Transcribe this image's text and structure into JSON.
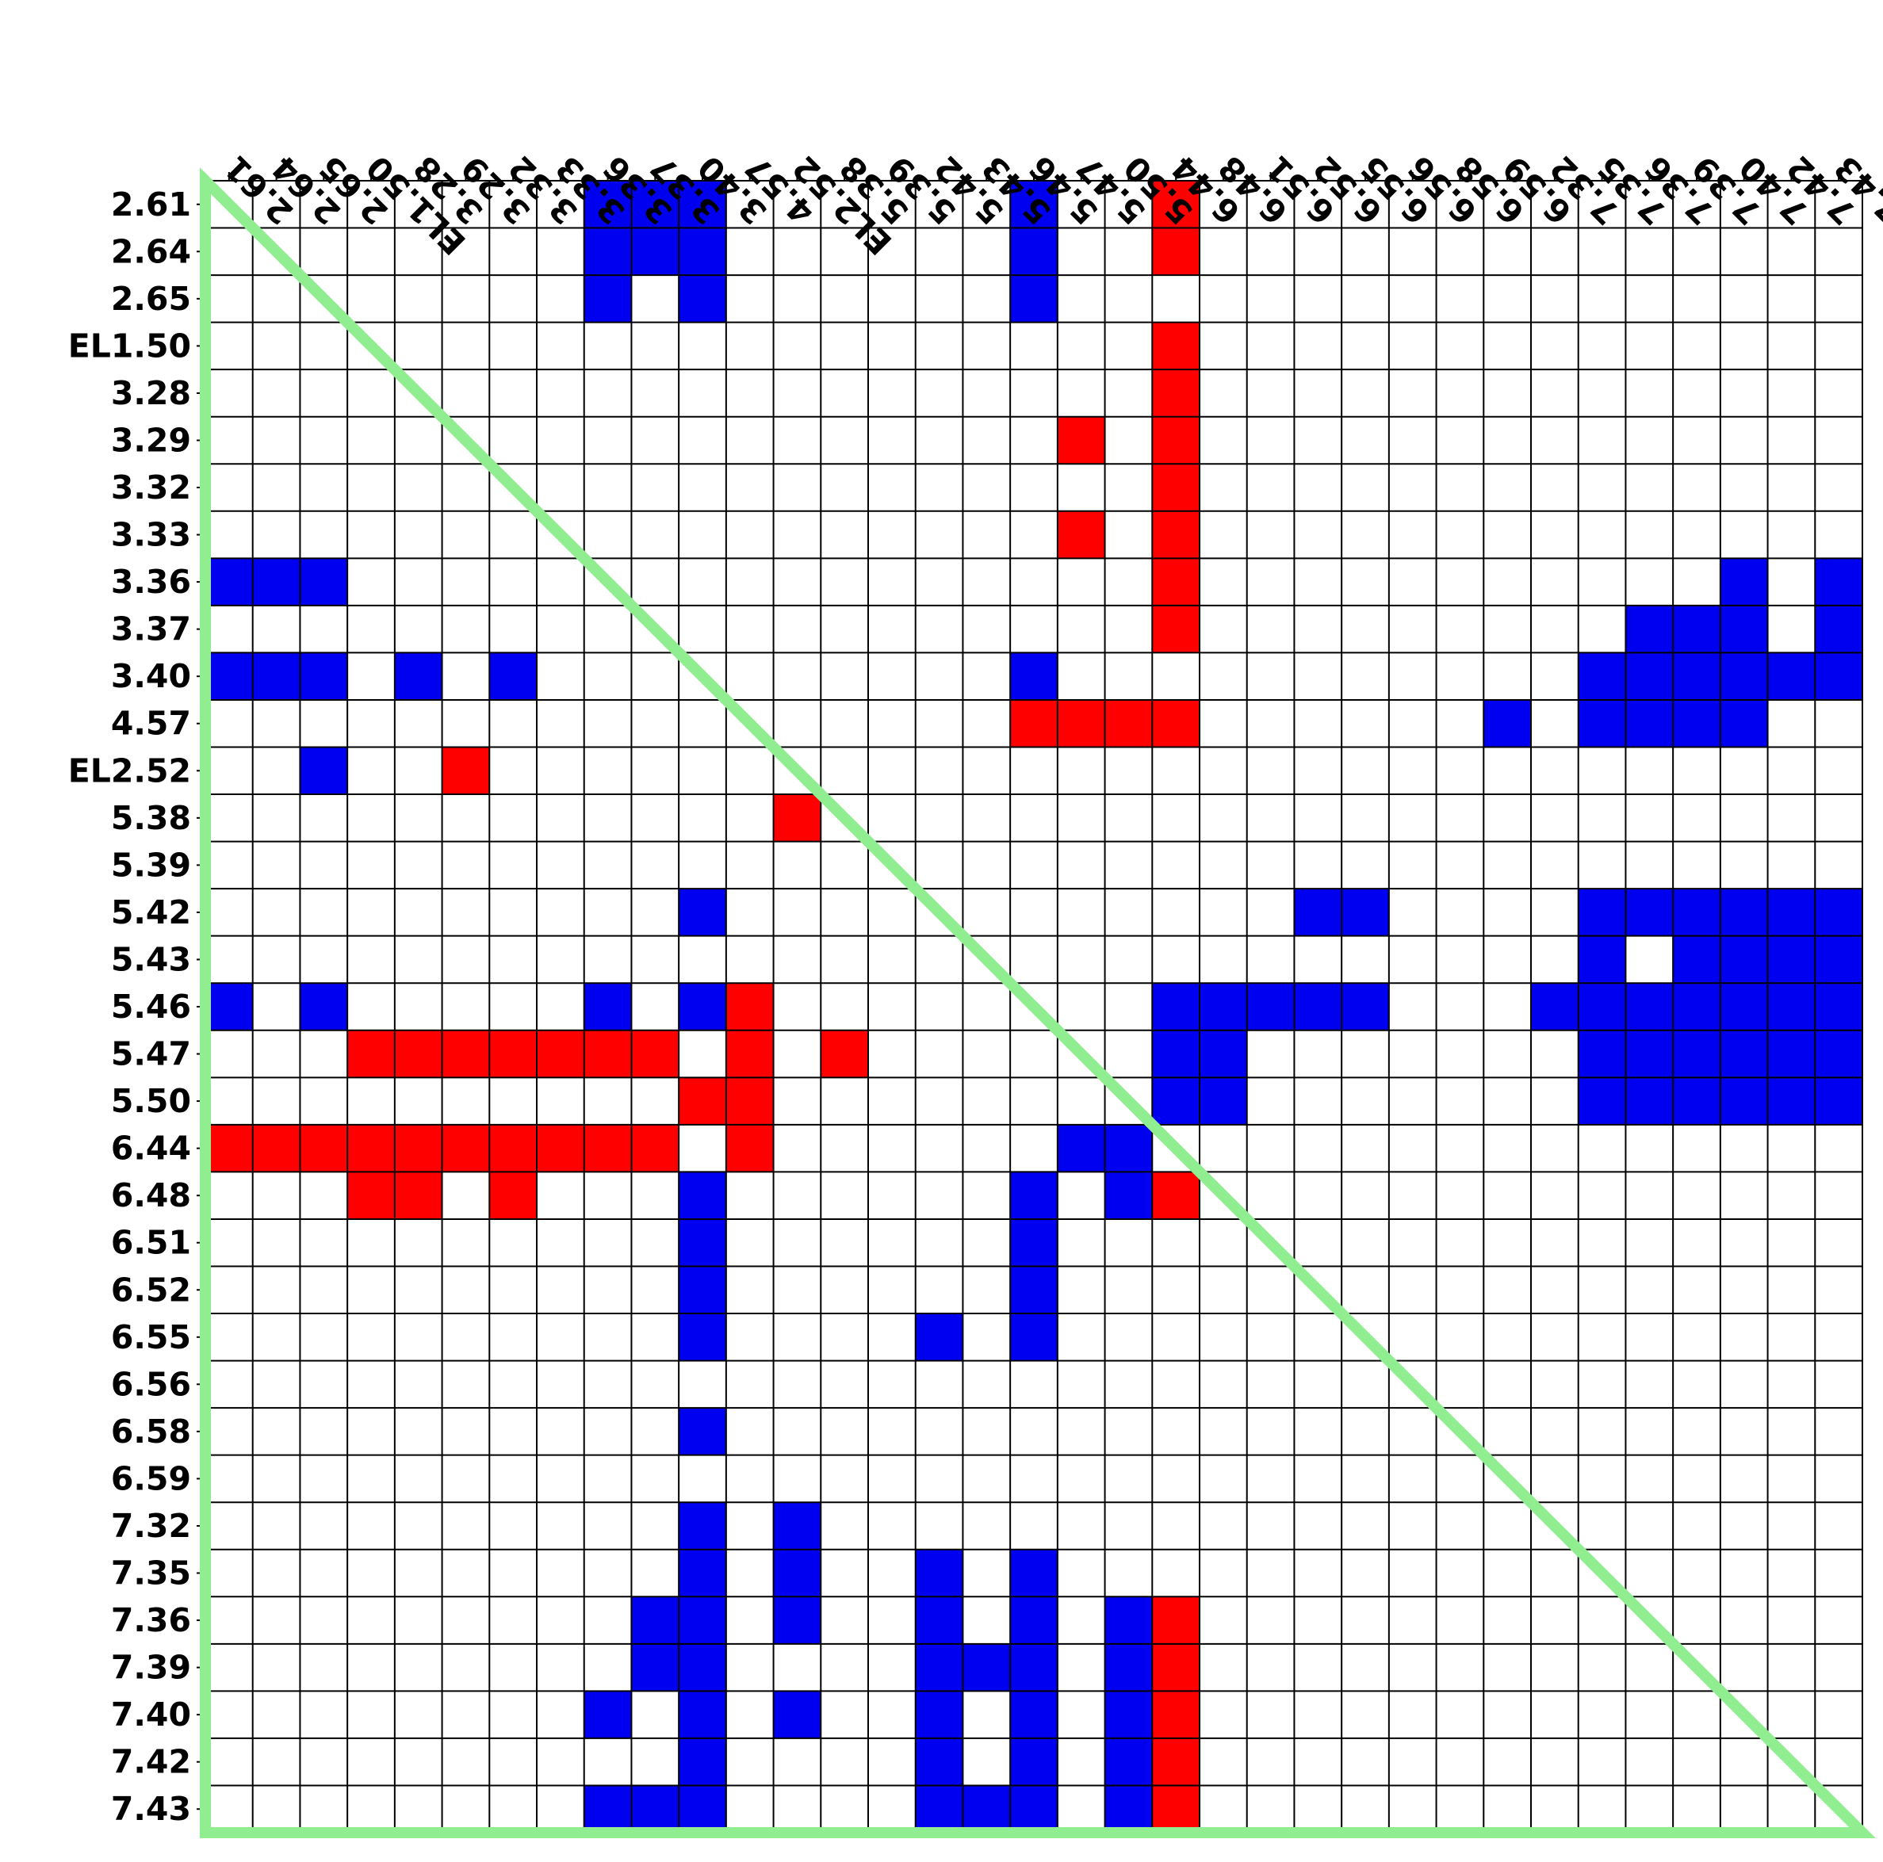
{
  "chart_data": {
    "type": "heatmap",
    "title": "",
    "xlabel": "",
    "ylabel": "",
    "labels": [
      "2.61",
      "2.64",
      "2.65",
      "EL1.50",
      "3.28",
      "3.29",
      "3.32",
      "3.33",
      "3.36",
      "3.37",
      "3.40",
      "4.57",
      "EL2.52",
      "5.38",
      "5.39",
      "5.42",
      "5.43",
      "5.46",
      "5.47",
      "5.50",
      "6.44",
      "6.48",
      "6.51",
      "6.52",
      "6.55",
      "6.56",
      "6.58",
      "6.59",
      "7.32",
      "7.35",
      "7.36",
      "7.39",
      "7.40",
      "7.42",
      "7.43"
    ],
    "x_tick_labels": [
      "2.61",
      "2.64",
      "2.65",
      "EL1.50",
      "3.28",
      "3.29",
      "3.32",
      "3.33",
      "3.36",
      "3.37",
      "3.40",
      "4.57",
      "EL2.52",
      "5.38",
      "5.39",
      "5.42",
      "5.43",
      "5.46",
      "5.47",
      "5.50",
      "6.44",
      "6.48",
      "6.51",
      "6.52",
      "6.55",
      "6.56",
      "6.58",
      "6.59",
      "7.32",
      "7.35",
      "7.36",
      "7.39",
      "7.40",
      "7.42",
      "7.43"
    ],
    "y_tick_labels": [
      "2.61",
      "2.64",
      "2.65",
      "EL1.50",
      "3.28",
      "3.29",
      "3.32",
      "3.33",
      "3.36",
      "3.37",
      "3.40",
      "4.57",
      "EL2.52",
      "5.38",
      "5.39",
      "5.42",
      "5.43",
      "5.46",
      "5.47",
      "5.50",
      "6.44",
      "6.48",
      "6.51",
      "6.52",
      "6.55",
      "6.56",
      "6.58",
      "6.59",
      "7.32",
      "7.35",
      "7.36",
      "7.39",
      "7.40",
      "7.42",
      "7.43"
    ],
    "grid": true,
    "colors": {
      "positive": "#0000f0",
      "negative": "#ff0000",
      "empty": "#ffffff",
      "grid_line": "#000000",
      "triangle_outline": "#90ee90"
    },
    "value_legend": {
      "1": "blue",
      "-1": "red",
      "0": "white"
    },
    "matrix": [
      [
        0,
        0,
        0,
        0,
        0,
        0,
        0,
        0,
        1,
        1,
        1,
        0,
        0,
        0,
        0,
        0,
        0,
        1,
        0,
        0,
        -1,
        0,
        0,
        0,
        0,
        0,
        0,
        0,
        0,
        0,
        0,
        0,
        0,
        0,
        0
      ],
      [
        0,
        0,
        0,
        0,
        0,
        0,
        0,
        0,
        1,
        1,
        1,
        0,
        0,
        0,
        0,
        0,
        0,
        1,
        0,
        0,
        -1,
        0,
        0,
        0,
        0,
        0,
        0,
        0,
        0,
        0,
        0,
        0,
        0,
        0,
        0
      ],
      [
        0,
        0,
        0,
        0,
        0,
        0,
        0,
        0,
        1,
        0,
        1,
        0,
        0,
        0,
        0,
        0,
        0,
        1,
        0,
        0,
        0,
        0,
        0,
        0,
        0,
        0,
        0,
        0,
        0,
        0,
        0,
        0,
        0,
        0,
        0
      ],
      [
        0,
        0,
        0,
        0,
        0,
        0,
        0,
        0,
        0,
        0,
        0,
        0,
        0,
        0,
        0,
        0,
        0,
        0,
        0,
        0,
        -1,
        0,
        0,
        0,
        0,
        0,
        0,
        0,
        0,
        0,
        0,
        0,
        0,
        0,
        0
      ],
      [
        0,
        0,
        0,
        0,
        0,
        0,
        0,
        0,
        0,
        0,
        0,
        0,
        0,
        0,
        0,
        0,
        0,
        0,
        0,
        0,
        -1,
        0,
        0,
        0,
        0,
        0,
        0,
        0,
        0,
        0,
        0,
        0,
        0,
        0,
        0
      ],
      [
        0,
        0,
        0,
        0,
        0,
        0,
        0,
        0,
        0,
        0,
        0,
        0,
        0,
        0,
        0,
        0,
        0,
        0,
        -1,
        0,
        -1,
        0,
        0,
        0,
        0,
        0,
        0,
        0,
        0,
        0,
        0,
        0,
        0,
        0,
        0
      ],
      [
        0,
        0,
        0,
        0,
        0,
        0,
        0,
        0,
        0,
        0,
        0,
        0,
        0,
        0,
        0,
        0,
        0,
        0,
        0,
        0,
        -1,
        0,
        0,
        0,
        0,
        0,
        0,
        0,
        0,
        0,
        0,
        0,
        0,
        0,
        0
      ],
      [
        0,
        0,
        0,
        0,
        0,
        0,
        0,
        0,
        0,
        0,
        0,
        0,
        0,
        0,
        0,
        0,
        0,
        0,
        -1,
        0,
        -1,
        0,
        0,
        0,
        0,
        0,
        0,
        0,
        0,
        0,
        0,
        0,
        0,
        0,
        0
      ],
      [
        1,
        1,
        1,
        0,
        0,
        0,
        0,
        0,
        0,
        0,
        0,
        0,
        0,
        0,
        0,
        0,
        0,
        0,
        0,
        0,
        -1,
        0,
        0,
        0,
        0,
        0,
        0,
        0,
        0,
        0,
        0,
        0,
        1,
        0,
        1
      ],
      [
        0,
        0,
        0,
        0,
        0,
        0,
        0,
        0,
        0,
        0,
        0,
        0,
        0,
        0,
        0,
        0,
        0,
        0,
        0,
        0,
        -1,
        0,
        0,
        0,
        0,
        0,
        0,
        0,
        0,
        0,
        1,
        1,
        1,
        0,
        1
      ],
      [
        1,
        1,
        1,
        0,
        1,
        0,
        1,
        0,
        0,
        0,
        0,
        0,
        0,
        0,
        0,
        0,
        0,
        1,
        0,
        0,
        0,
        0,
        0,
        0,
        0,
        0,
        0,
        0,
        0,
        1,
        1,
        1,
        1,
        1,
        1
      ],
      [
        0,
        0,
        0,
        0,
        0,
        0,
        0,
        0,
        0,
        0,
        0,
        0,
        0,
        0,
        0,
        0,
        0,
        -1,
        -1,
        -1,
        -1,
        0,
        0,
        0,
        0,
        0,
        0,
        1,
        0,
        1,
        1,
        1,
        1,
        0,
        0
      ],
      [
        0,
        0,
        1,
        0,
        0,
        -1,
        0,
        0,
        0,
        0,
        0,
        0,
        0,
        0,
        0,
        0,
        0,
        0,
        0,
        0,
        0,
        0,
        0,
        0,
        0,
        0,
        0,
        0,
        0,
        0,
        0,
        0,
        0,
        0,
        0
      ],
      [
        0,
        0,
        0,
        0,
        0,
        0,
        0,
        0,
        0,
        0,
        0,
        0,
        -1,
        0,
        0,
        0,
        0,
        0,
        0,
        0,
        0,
        0,
        0,
        0,
        0,
        0,
        0,
        0,
        0,
        0,
        0,
        0,
        0,
        0,
        0
      ],
      [
        0,
        0,
        0,
        0,
        0,
        0,
        0,
        0,
        0,
        0,
        0,
        0,
        0,
        0,
        0,
        0,
        0,
        0,
        0,
        0,
        0,
        0,
        0,
        0,
        0,
        0,
        0,
        0,
        0,
        0,
        0,
        0,
        0,
        0,
        0
      ],
      [
        0,
        0,
        0,
        0,
        0,
        0,
        0,
        0,
        0,
        0,
        1,
        0,
        0,
        0,
        0,
        0,
        0,
        0,
        0,
        0,
        0,
        0,
        0,
        1,
        1,
        0,
        0,
        0,
        0,
        1,
        1,
        1,
        1,
        1,
        1
      ],
      [
        0,
        0,
        0,
        0,
        0,
        0,
        0,
        0,
        0,
        0,
        0,
        0,
        0,
        0,
        0,
        0,
        0,
        0,
        0,
        0,
        0,
        0,
        0,
        0,
        0,
        0,
        0,
        0,
        0,
        1,
        0,
        1,
        1,
        1,
        1
      ],
      [
        1,
        0,
        1,
        0,
        0,
        0,
        0,
        0,
        1,
        0,
        1,
        -1,
        0,
        0,
        0,
        0,
        0,
        0,
        0,
        0,
        1,
        1,
        1,
        1,
        1,
        0,
        0,
        0,
        1,
        1,
        1,
        1,
        1,
        1,
        1
      ],
      [
        0,
        0,
        0,
        -1,
        -1,
        -1,
        -1,
        -1,
        -1,
        -1,
        0,
        -1,
        0,
        -1,
        0,
        0,
        0,
        0,
        0,
        0,
        1,
        1,
        0,
        0,
        0,
        0,
        0,
        0,
        0,
        1,
        1,
        1,
        1,
        1,
        1
      ],
      [
        0,
        0,
        0,
        0,
        0,
        0,
        0,
        0,
        0,
        0,
        -1,
        -1,
        0,
        0,
        0,
        0,
        0,
        0,
        0,
        0,
        1,
        1,
        0,
        0,
        0,
        0,
        0,
        0,
        0,
        1,
        1,
        1,
        1,
        1,
        1
      ],
      [
        -1,
        -1,
        -1,
        -1,
        -1,
        -1,
        -1,
        -1,
        -1,
        -1,
        0,
        -1,
        0,
        0,
        0,
        0,
        0,
        0,
        1,
        1,
        0,
        0,
        0,
        0,
        0,
        0,
        0,
        0,
        0,
        0,
        0,
        0,
        0,
        0,
        0
      ],
      [
        0,
        0,
        0,
        -1,
        -1,
        0,
        -1,
        0,
        0,
        0,
        1,
        0,
        0,
        0,
        0,
        0,
        0,
        1,
        0,
        1,
        -1,
        0,
        0,
        0,
        0,
        0,
        0,
        0,
        0,
        0,
        0,
        0,
        0,
        0,
        0
      ],
      [
        0,
        0,
        0,
        0,
        0,
        0,
        0,
        0,
        0,
        0,
        1,
        0,
        0,
        0,
        0,
        0,
        0,
        1,
        0,
        0,
        0,
        0,
        0,
        0,
        0,
        0,
        0,
        0,
        0,
        0,
        0,
        0,
        0,
        0,
        0
      ],
      [
        0,
        0,
        0,
        0,
        0,
        0,
        0,
        0,
        0,
        0,
        1,
        0,
        0,
        0,
        0,
        0,
        0,
        1,
        0,
        0,
        0,
        0,
        0,
        0,
        0,
        0,
        0,
        0,
        0,
        0,
        0,
        0,
        0,
        0,
        0
      ],
      [
        0,
        0,
        0,
        0,
        0,
        0,
        0,
        0,
        0,
        0,
        1,
        0,
        0,
        0,
        0,
        1,
        0,
        1,
        0,
        0,
        0,
        0,
        0,
        0,
        0,
        0,
        0,
        0,
        0,
        0,
        0,
        0,
        0,
        0,
        0
      ],
      [
        0,
        0,
        0,
        0,
        0,
        0,
        0,
        0,
        0,
        0,
        0,
        0,
        0,
        0,
        0,
        0,
        0,
        0,
        0,
        0,
        0,
        0,
        0,
        0,
        0,
        0,
        0,
        0,
        0,
        0,
        0,
        0,
        0,
        0,
        0
      ],
      [
        0,
        0,
        0,
        0,
        0,
        0,
        0,
        0,
        0,
        0,
        1,
        0,
        0,
        0,
        0,
        0,
        0,
        0,
        0,
        0,
        0,
        0,
        0,
        0,
        0,
        0,
        0,
        0,
        0,
        0,
        0,
        0,
        0,
        0,
        0
      ],
      [
        0,
        0,
        0,
        0,
        0,
        0,
        0,
        0,
        0,
        0,
        0,
        0,
        0,
        0,
        0,
        0,
        0,
        0,
        0,
        0,
        0,
        0,
        0,
        0,
        0,
        0,
        0,
        0,
        0,
        0,
        0,
        0,
        0,
        0,
        0
      ],
      [
        0,
        0,
        0,
        0,
        0,
        0,
        0,
        0,
        0,
        0,
        1,
        0,
        1,
        0,
        0,
        0,
        0,
        0,
        0,
        0,
        0,
        0,
        0,
        0,
        0,
        0,
        0,
        0,
        0,
        0,
        0,
        0,
        0,
        0,
        0
      ],
      [
        0,
        0,
        0,
        0,
        0,
        0,
        0,
        0,
        0,
        0,
        1,
        0,
        1,
        0,
        0,
        1,
        0,
        1,
        0,
        0,
        0,
        0,
        0,
        0,
        0,
        0,
        0,
        0,
        0,
        0,
        0,
        0,
        0,
        0,
        0
      ],
      [
        0,
        0,
        0,
        0,
        0,
        0,
        0,
        0,
        0,
        1,
        1,
        0,
        1,
        0,
        0,
        1,
        0,
        1,
        0,
        1,
        -1,
        0,
        0,
        0,
        0,
        0,
        0,
        0,
        0,
        0,
        0,
        0,
        0,
        0,
        0
      ],
      [
        0,
        0,
        0,
        0,
        0,
        0,
        0,
        0,
        0,
        1,
        1,
        0,
        0,
        0,
        0,
        1,
        1,
        1,
        0,
        1,
        -1,
        0,
        0,
        0,
        0,
        0,
        0,
        0,
        0,
        0,
        0,
        0,
        0,
        0,
        0
      ],
      [
        0,
        0,
        0,
        0,
        0,
        0,
        0,
        0,
        1,
        0,
        1,
        0,
        1,
        0,
        0,
        1,
        0,
        1,
        0,
        1,
        -1,
        0,
        0,
        0,
        0,
        0,
        0,
        0,
        0,
        0,
        0,
        0,
        0,
        0,
        0
      ],
      [
        0,
        0,
        0,
        0,
        0,
        0,
        0,
        0,
        0,
        0,
        1,
        0,
        0,
        0,
        0,
        1,
        0,
        1,
        0,
        1,
        -1,
        0,
        0,
        0,
        0,
        0,
        0,
        0,
        0,
        0,
        0,
        0,
        0,
        0,
        0
      ],
      [
        0,
        0,
        0,
        0,
        0,
        0,
        0,
        0,
        1,
        1,
        1,
        0,
        0,
        0,
        0,
        1,
        1,
        1,
        0,
        1,
        -1,
        0,
        0,
        0,
        0,
        0,
        0,
        0,
        0,
        0,
        0,
        0,
        0,
        0,
        0
      ]
    ]
  }
}
